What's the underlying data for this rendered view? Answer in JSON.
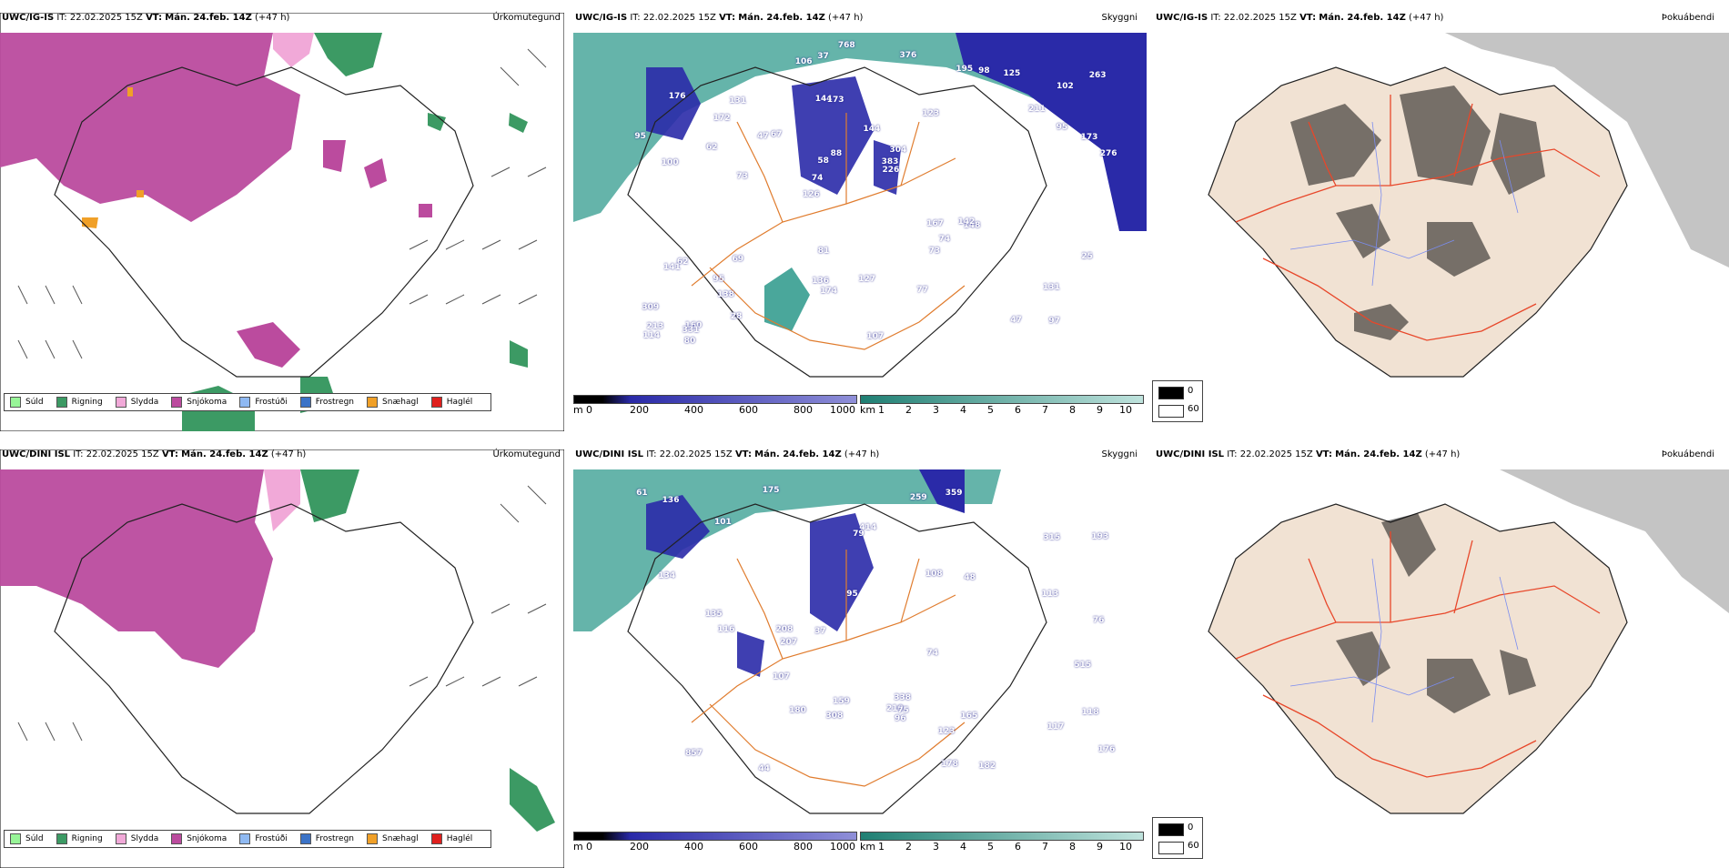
{
  "rows": [
    {
      "model": "UWC/IG-IS",
      "it_label": "IT:",
      "it": "22.02.2025 15Z",
      "vt_label": "VT:",
      "vt": "Mán. 24.feb. 14Z",
      "lead": "(+47 h)",
      "titles": [
        "Úrkomutegund",
        "Skyggni",
        "Þokuábendi"
      ],
      "labels": [
        "97",
        "100",
        "102",
        "126",
        "123",
        "160",
        "144",
        "144",
        "62",
        "67",
        "309",
        "138",
        "173",
        "304",
        "148",
        "176",
        "37",
        "276",
        "167",
        "95",
        "74",
        "136",
        "58",
        "131",
        "195",
        "69",
        "47",
        "131",
        "142",
        "107",
        "47",
        "62",
        "73",
        "28",
        "173",
        "383",
        "213",
        "174",
        "226",
        "141",
        "211",
        "263",
        "74",
        "77",
        "95",
        "80",
        "114",
        "127",
        "125",
        "768",
        "73",
        "95",
        "172",
        "98",
        "331",
        "376",
        "106",
        "88",
        "25",
        "81"
      ]
    },
    {
      "model": "UWC/DINI ISL",
      "it_label": "IT:",
      "it": "22.02.2025 15Z",
      "vt_label": "VT:",
      "vt": "Mán. 24.feb. 14Z",
      "lead": "(+47 h)",
      "titles": [
        "Úrkomutegund",
        "Skyggni",
        "Þokuábendi"
      ],
      "labels": [
        "117",
        "118",
        "338",
        "259",
        "165",
        "48",
        "182",
        "176",
        "101",
        "123",
        "135",
        "208",
        "359",
        "210",
        "159",
        "857",
        "79",
        "315",
        "180",
        "175",
        "193",
        "178",
        "107",
        "136",
        "308",
        "113",
        "414",
        "515",
        "207",
        "96",
        "75",
        "76",
        "108",
        "74",
        "116",
        "61",
        "95",
        "44",
        "134",
        "37"
      ]
    }
  ],
  "precip_legend": [
    {
      "label": "Súld",
      "color": "#98f598"
    },
    {
      "label": "Rigning",
      "color": "#3c9a64"
    },
    {
      "label": "Slydda",
      "color": "#f1a9d8"
    },
    {
      "label": "Snjókoma",
      "color": "#bb4b9e"
    },
    {
      "label": "Frostúði",
      "color": "#8fb9f2"
    },
    {
      "label": "Frostregn",
      "color": "#3b73c7"
    },
    {
      "label": "Snæhagl",
      "color": "#f0a028"
    },
    {
      "label": "Haglél",
      "color": "#e0201e"
    }
  ],
  "vis_scale_m": {
    "unit": "m",
    "ticks": [
      "0",
      "200",
      "400",
      "600",
      "800",
      "1000"
    ]
  },
  "vis_scale_km": {
    "unit": "km",
    "ticks": [
      "1",
      "2",
      "3",
      "4",
      "5",
      "6",
      "7",
      "8",
      "9",
      "10"
    ]
  },
  "fog_key": [
    "0",
    "60"
  ],
  "colors": {
    "snow": "#bb4b9e",
    "rain": "#3c9a64",
    "drizzle": "#98f598",
    "sleet": "#f1a9d8",
    "vis_teal": "#4aa79b",
    "vis_blue": "#2a2aa8",
    "roads": "#e07c2e",
    "fog_land": "#f1e2d3"
  }
}
